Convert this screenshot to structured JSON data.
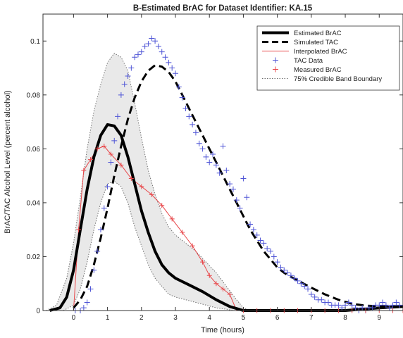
{
  "colors": {
    "estimated": "#000000",
    "simulated": "#000000",
    "interpolated": "#e8474a",
    "tac_data": "#4f55d6",
    "measured": "#e8474a",
    "band_line": "#707070",
    "band_fill": "#e9e9e9"
  },
  "chart_data": {
    "type": "line",
    "title": "B-Estimated BrAC for Dataset Identifier: KA.15",
    "xlabel": "Time (hours)",
    "ylabel": "BrAC/TAC Alcohol Level (percent alcohol)",
    "xlim": [
      -0.9,
      9.7
    ],
    "ylim": [
      0,
      0.11
    ],
    "xticks": [
      0,
      1,
      2,
      3,
      4,
      5,
      6,
      7,
      8,
      9
    ],
    "xtick_labels": [
      "0",
      "1",
      "2",
      "3",
      "4",
      "5",
      "6",
      "7",
      "8",
      "9"
    ],
    "yticks": [
      0,
      0.02,
      0.04,
      0.06,
      0.08,
      0.1
    ],
    "ytick_labels": [
      "0",
      "0.02",
      "0.04",
      "0.06",
      "0.08",
      "0.1"
    ],
    "grid": false,
    "legend_position": "top-right",
    "series": [
      {
        "name": "Estimated BrAC",
        "style": "solid-thick",
        "x": [
          -0.7,
          -0.4,
          -0.2,
          0,
          0.2,
          0.4,
          0.6,
          0.8,
          1.0,
          1.2,
          1.4,
          1.6,
          1.8,
          2.0,
          2.2,
          2.4,
          2.6,
          2.8,
          3.0,
          3.4,
          3.8,
          4.2,
          4.6,
          5.0,
          5.2,
          5.4,
          6.0,
          7.0,
          8.0,
          9.0,
          9.7
        ],
        "y": [
          0,
          0.001,
          0.005,
          0.015,
          0.03,
          0.045,
          0.057,
          0.065,
          0.069,
          0.0685,
          0.065,
          0.057,
          0.047,
          0.037,
          0.029,
          0.022,
          0.017,
          0.014,
          0.012,
          0.0095,
          0.007,
          0.004,
          0.0015,
          0,
          0,
          0,
          0,
          0,
          0,
          0.001,
          0.0015
        ]
      },
      {
        "name": "Simulated TAC",
        "style": "dashed-thick",
        "x": [
          0,
          0.2,
          0.4,
          0.6,
          0.8,
          1.0,
          1.2,
          1.4,
          1.6,
          1.8,
          2.0,
          2.2,
          2.4,
          2.6,
          2.8,
          3.0,
          3.2,
          3.4,
          3.6,
          3.8,
          4.0,
          4.2,
          4.4,
          4.6,
          4.8,
          5.0,
          5.2,
          5.4,
          5.6,
          5.8,
          6.0,
          6.2,
          6.4,
          6.6,
          6.8,
          7.0,
          7.4,
          7.8,
          8.2,
          8.6,
          9.0,
          9.7
        ],
        "y": [
          0.001,
          0.004,
          0.009,
          0.017,
          0.027,
          0.038,
          0.05,
          0.061,
          0.071,
          0.079,
          0.085,
          0.089,
          0.091,
          0.0905,
          0.0885,
          0.085,
          0.08,
          0.075,
          0.07,
          0.065,
          0.06,
          0.055,
          0.05,
          0.045,
          0.04,
          0.035,
          0.03,
          0.026,
          0.022,
          0.019,
          0.016,
          0.014,
          0.0125,
          0.0112,
          0.0098,
          0.0085,
          0.006,
          0.004,
          0.0025,
          0.0018,
          0.0016,
          0.0015
        ]
      },
      {
        "name": "Interpolated BrAC",
        "style": "solid-thin",
        "x": [
          0,
          0.15,
          0.3,
          0.5,
          0.7,
          0.9,
          1.1,
          1.4,
          1.7,
          2.0,
          2.3,
          2.6,
          2.9,
          3.2,
          3.5,
          3.8,
          4.0,
          4.2,
          4.4,
          4.6,
          4.8,
          5.0,
          5.4,
          6.0,
          7.0,
          8.0,
          9.0,
          9.7
        ],
        "y": [
          0,
          0.03,
          0.052,
          0.056,
          0.06,
          0.061,
          0.058,
          0.054,
          0.049,
          0.046,
          0.043,
          0.039,
          0.034,
          0.029,
          0.024,
          0.018,
          0.013,
          0.01,
          0.008,
          0.006,
          0,
          0,
          0,
          0,
          0,
          0,
          0,
          0
        ]
      },
      {
        "name": "TAC Data",
        "style": "markers-plus",
        "x": [
          0.05,
          0.2,
          0.3,
          0.4,
          0.5,
          0.6,
          0.7,
          0.8,
          0.9,
          1.0,
          1.1,
          1.2,
          1.3,
          1.4,
          1.5,
          1.6,
          1.7,
          1.8,
          1.9,
          2.0,
          2.1,
          2.2,
          2.3,
          2.4,
          2.5,
          2.6,
          2.7,
          2.8,
          2.9,
          3.0,
          3.1,
          3.2,
          3.3,
          3.4,
          3.5,
          3.6,
          3.7,
          3.8,
          3.9,
          4.0,
          4.1,
          4.2,
          4.3,
          4.4,
          4.5,
          4.6,
          4.7,
          4.8,
          4.9,
          5.0,
          5.1,
          5.2,
          5.3,
          5.4,
          5.5,
          5.6,
          5.7,
          5.8,
          5.9,
          6.0,
          6.1,
          6.2,
          6.3,
          6.4,
          6.5,
          6.6,
          6.7,
          6.8,
          6.9,
          7.0,
          7.1,
          7.2,
          7.3,
          7.4,
          7.5,
          7.6,
          7.7,
          7.8,
          7.9,
          8.0,
          8.1,
          8.2,
          8.3,
          8.4,
          8.5,
          8.6,
          8.7,
          8.8,
          8.9,
          9.0,
          9.1,
          9.2,
          9.3,
          9.4,
          9.5,
          9.6
        ],
        "y": [
          0,
          0,
          0.001,
          0.003,
          0.008,
          0.015,
          0.022,
          0.03,
          0.038,
          0.046,
          0.055,
          0.063,
          0.072,
          0.08,
          0.084,
          0.087,
          0.09,
          0.094,
          0.095,
          0.096,
          0.098,
          0.099,
          0.101,
          0.1,
          0.098,
          0.096,
          0.094,
          0.092,
          0.09,
          0.088,
          0.083,
          0.079,
          0.075,
          0.072,
          0.069,
          0.066,
          0.062,
          0.06,
          0.057,
          0.055,
          0.058,
          0.054,
          0.051,
          0.061,
          0.052,
          0.047,
          0.045,
          0.041,
          0.038,
          0.049,
          0.042,
          0.032,
          0.03,
          0.028,
          0.026,
          0.025,
          0.023,
          0.022,
          0.02,
          0.018,
          0.016,
          0.015,
          0.014,
          0.013,
          0.012,
          0.011,
          0.01,
          0.009,
          0.008,
          0.006,
          0.005,
          0.004,
          0.004,
          0.003,
          0.003,
          0.002,
          0.002,
          0.002,
          0.001,
          0.002,
          0.003,
          0.002,
          0.001,
          0,
          0.001,
          0,
          0.001,
          0.001,
          0.002,
          0.002,
          0.003,
          0.002,
          0.001,
          0.002,
          0.003,
          0.002
        ]
      },
      {
        "name": "Measured BrAC",
        "style": "markers-plus",
        "x": [
          0.15,
          0.3,
          0.5,
          0.7,
          0.9,
          1.1,
          1.4,
          1.7,
          2.0,
          2.3,
          2.6,
          2.9,
          3.2,
          3.5,
          3.8,
          4.0,
          4.2,
          4.4,
          4.6,
          5.0,
          5.4,
          5.8,
          6.2,
          6.6,
          7.0,
          7.4,
          7.8,
          8.2,
          8.6,
          9.0,
          9.4,
          9.7
        ],
        "y": [
          0.03,
          0.052,
          0.056,
          0.06,
          0.061,
          0.058,
          0.054,
          0.049,
          0.046,
          0.043,
          0.039,
          0.034,
          0.029,
          0.024,
          0.018,
          0.013,
          0.01,
          0.008,
          0.006,
          0,
          0,
          0,
          0,
          0,
          0,
          0,
          0,
          0,
          0,
          0,
          0,
          0
        ]
      },
      {
        "name": "75% Credible Band Boundary",
        "style": "dotted",
        "upper": {
          "x": [
            -0.8,
            -0.5,
            -0.2,
            0,
            0.2,
            0.4,
            0.6,
            0.8,
            1.0,
            1.2,
            1.4,
            1.6,
            1.8,
            2.0,
            2.2,
            2.4,
            2.6,
            2.8,
            3.0,
            3.3,
            3.6,
            3.9,
            4.2,
            4.5,
            4.8,
            5.0,
            5.2
          ],
          "y": [
            0,
            0.002,
            0.012,
            0.025,
            0.042,
            0.06,
            0.074,
            0.084,
            0.092,
            0.0955,
            0.094,
            0.089,
            0.077,
            0.064,
            0.052,
            0.043,
            0.036,
            0.031,
            0.028,
            0.025,
            0.022,
            0.018,
            0.014,
            0.009,
            0.004,
            0.001,
            0
          ]
        },
        "lower": {
          "x": [
            -0.3,
            0,
            0.2,
            0.4,
            0.6,
            0.8,
            1.0,
            1.2,
            1.4,
            1.6,
            1.8,
            2.0,
            2.2,
            2.4,
            2.6,
            2.8,
            3.0,
            3.3,
            3.6,
            3.9,
            4.2,
            4.5,
            4.7
          ],
          "y": [
            0,
            0.002,
            0.008,
            0.018,
            0.03,
            0.04,
            0.047,
            0.048,
            0.046,
            0.04,
            0.031,
            0.024,
            0.017,
            0.012,
            0.009,
            0.006,
            0.005,
            0.004,
            0.003,
            0.002,
            0.001,
            0.0005,
            0
          ]
        }
      }
    ]
  }
}
